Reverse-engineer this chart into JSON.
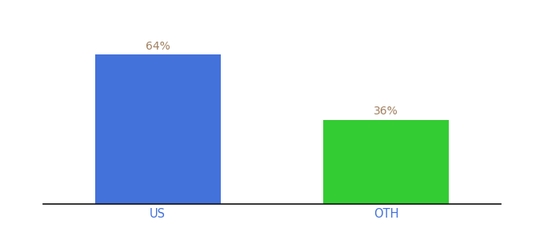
{
  "categories": [
    "US",
    "OTH"
  ],
  "values": [
    64,
    36
  ],
  "bar_colors": [
    "#4472db",
    "#33cc33"
  ],
  "label_color": "#a08060",
  "label_fontsize": 10,
  "tick_label_color": "#4472db",
  "tick_fontsize": 10.5,
  "background_color": "#ffffff",
  "ylim": [
    0,
    75
  ],
  "bar_width": 0.55,
  "xlim": [
    -0.5,
    1.5
  ]
}
